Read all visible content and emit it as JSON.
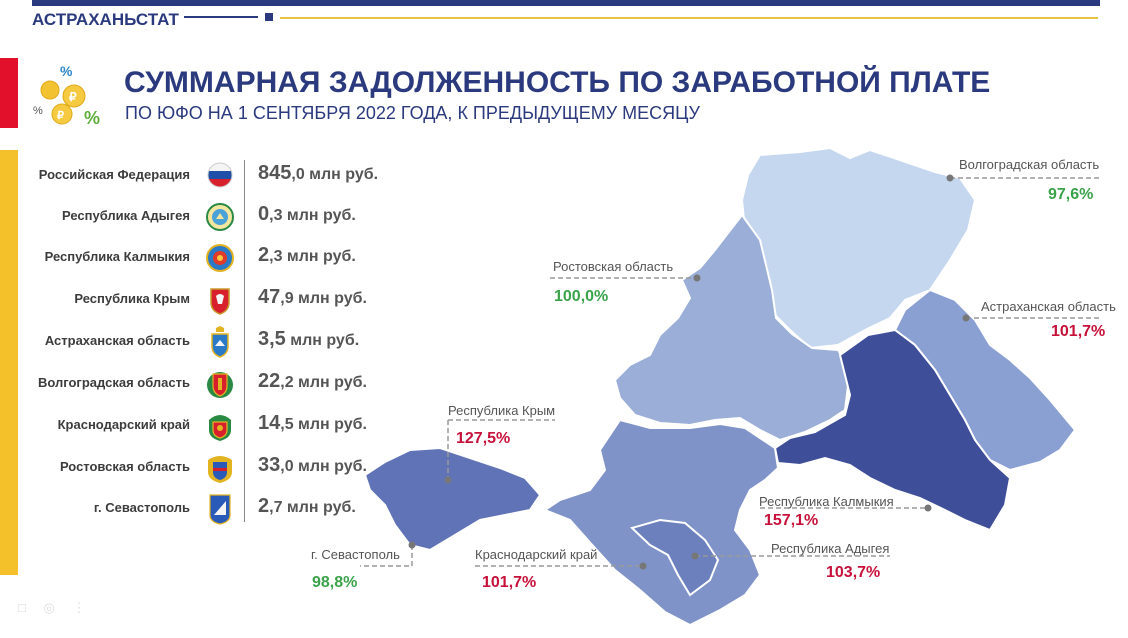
{
  "header": {
    "brand": "АСТРАХАНЬСТАТ",
    "title": "СУММАРНАЯ ЗАДОЛЖЕННОСТЬ ПО ЗАРАБОТНОЙ ПЛАТЕ",
    "subtitle": "ПО ЮФО НА 1 СЕНТЯБРЯ  2022 ГОДА, К ПРЕДЫДУЩЕМУ МЕСЯЦУ"
  },
  "colors": {
    "brand_blue": "#2b3a7e",
    "accent_red": "#e3102b",
    "accent_yellow": "#f5c12b",
    "positive_green": "#3aa34a",
    "negative_red": "#c7113a"
  },
  "regions": [
    {
      "name": "Российская Федерация",
      "value_int": "845",
      "value_dec": ",0 млн руб.",
      "emblem": "russia-flag-icon"
    },
    {
      "name": "Республика Адыгея",
      "value_int": "0",
      "value_dec": ",3 млн руб.",
      "emblem": "adygea-emblem-icon"
    },
    {
      "name": "Республика Калмыкия",
      "value_int": "2",
      "value_dec": ",3 млн руб.",
      "emblem": "kalmykia-emblem-icon"
    },
    {
      "name": "Республика Крым",
      "value_int": "47",
      "value_dec": ",9 млн руб.",
      "emblem": "crimea-emblem-icon"
    },
    {
      "name": "Астраханская область",
      "value_int": "3,5",
      "value_dec": " млн руб.",
      "emblem": "astrakhan-emblem-icon"
    },
    {
      "name": "Волгоградская область",
      "value_int": "22",
      "value_dec": ",2 млн руб.",
      "emblem": "volgograd-emblem-icon"
    },
    {
      "name": "Краснодарский край",
      "value_int": "14",
      "value_dec": ",5 млн руб.",
      "emblem": "krasnodar-emblem-icon"
    },
    {
      "name": "Ростовская область",
      "value_int": "33",
      "value_dec": ",0 млн руб.",
      "emblem": "rostov-emblem-icon"
    },
    {
      "name": "г. Севастополь",
      "value_int": "2",
      "value_dec": ",7 млн руб.",
      "emblem": "sevastopol-emblem-icon"
    }
  ],
  "map_labels": {
    "volgograd": {
      "name": "Волгоградская область",
      "pct": "97,6%"
    },
    "rostov": {
      "name": "Ростовская область",
      "pct": "100,0%"
    },
    "astrakhan": {
      "name": "Астраханская область",
      "pct": "101,7%"
    },
    "crimea": {
      "name": "Республика Крым",
      "pct": "127,5%"
    },
    "kalmykia": {
      "name": "Республика Калмыкия",
      "pct": "157,1%"
    },
    "sevastopol": {
      "name": "г. Севастополь",
      "pct": "98,8%"
    },
    "krasnodar": {
      "name": "Краснодарский край",
      "pct": "101,7%"
    },
    "adygea": {
      "name": "Республика Адыгея",
      "pct": "103,7%"
    }
  }
}
